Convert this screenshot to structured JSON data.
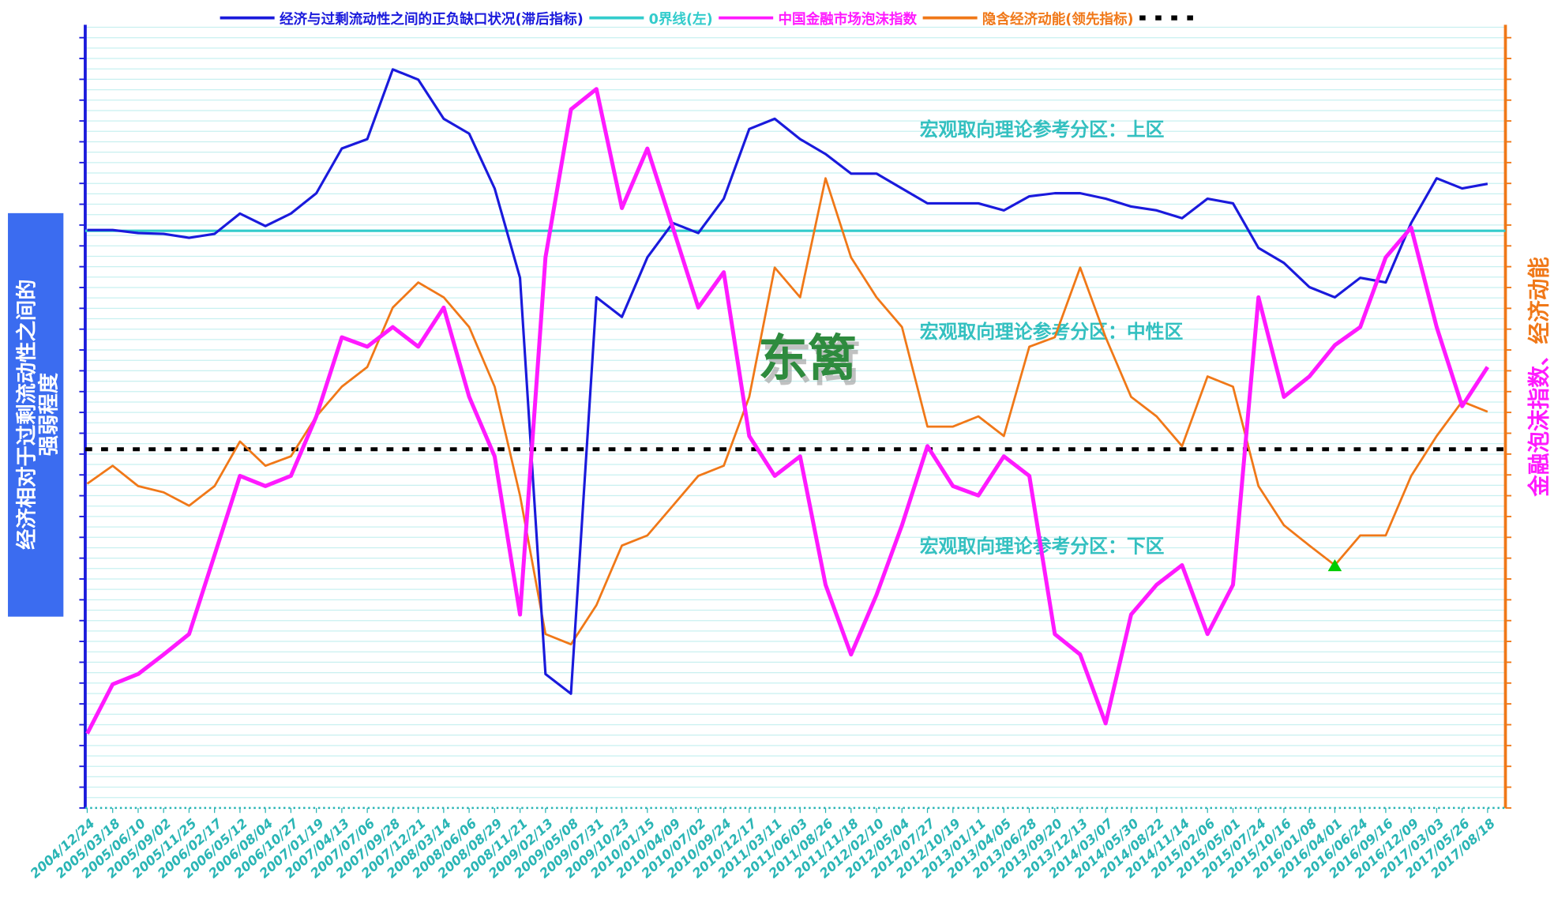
{
  "chart_data": {
    "type": "line",
    "watermark": "东篱",
    "ylabel": [
      "经济相对于过剩流动性之间的",
      "强弱程度"
    ],
    "y2label": [
      "金融泡沫指数、",
      "经济动能"
    ],
    "ylim": [
      0,
      100
    ],
    "y2lim": [
      0,
      100
    ],
    "annotations": [
      "宏观取向理论参考分区：上区",
      "宏观取向理论参考分区：中性区",
      "宏观取向理论参考分区：下区"
    ],
    "categories": [
      "2004/12/24",
      "2005/03/18",
      "2005/06/10",
      "2005/09/02",
      "2005/11/25",
      "2006/02/17",
      "2006/05/12",
      "2006/08/04",
      "2006/10/27",
      "2007/01/19",
      "2007/04/13",
      "2007/07/06",
      "2007/09/28",
      "2007/12/21",
      "2008/03/14",
      "2008/06/06",
      "2008/08/29",
      "2008/11/21",
      "2009/02/13",
      "2009/05/08",
      "2009/07/31",
      "2009/10/23",
      "2010/01/15",
      "2010/04/09",
      "2010/07/02",
      "2010/09/24",
      "2010/12/17",
      "2011/03/11",
      "2011/06/03",
      "2011/08/26",
      "2011/11/18",
      "2012/02/10",
      "2012/05/04",
      "2012/07/27",
      "2012/10/19",
      "2013/01/11",
      "2013/04/05",
      "2013/06/28",
      "2013/09/20",
      "2013/12/13",
      "2014/03/07",
      "2014/05/30",
      "2014/08/22",
      "2014/11/14",
      "2015/02/06",
      "2015/05/01",
      "2015/07/24",
      "2015/10/16",
      "2016/01/08",
      "2016/04/01",
      "2016/06/24",
      "2016/09/16",
      "2016/12/09",
      "2017/03/03",
      "2017/05/26",
      "2017/08/18"
    ],
    "series": [
      {
        "name": "经济与过剩流动性之间的正负缺口状况(滞后指标)",
        "color": "#1a1adc",
        "width": 2.5,
        "values": [
          73.8,
          73.8,
          73.4,
          73.3,
          72.8,
          73.3,
          75.9,
          74.3,
          75.9,
          78.5,
          84.2,
          85.4,
          94.3,
          93.0,
          88.0,
          86.1,
          79.1,
          67.7,
          17.1,
          14.6,
          65.2,
          62.7,
          70.3,
          74.7,
          73.4,
          77.8,
          86.7,
          88.0,
          85.4,
          83.5,
          81.0,
          81.0,
          79.1,
          77.2,
          77.2,
          77.2,
          76.3,
          78.1,
          78.5,
          78.5,
          77.8,
          76.8,
          76.3,
          75.3,
          77.8,
          77.2,
          71.5,
          69.6,
          66.5,
          65.2,
          67.7,
          67.1,
          74.7,
          80.4,
          79.1,
          79.7
        ]
      },
      {
        "name": "中国金融市场泡沫指数",
        "color": "#ff1aff",
        "width": 4,
        "axis": "y2",
        "values": [
          9.5,
          15.8,
          17.1,
          19.6,
          22.2,
          32.3,
          42.4,
          41.1,
          42.4,
          50.0,
          60.1,
          58.9,
          61.4,
          58.9,
          63.9,
          52.5,
          44.9,
          24.7,
          70.3,
          89.2,
          91.8,
          76.6,
          84.2,
          74.1,
          63.9,
          68.4,
          47.5,
          42.4,
          44.9,
          28.5,
          19.6,
          27.2,
          36.1,
          46.2,
          41.1,
          39.9,
          44.9,
          42.4,
          22.2,
          19.6,
          10.8,
          24.7,
          28.5,
          31.0,
          22.2,
          28.5,
          65.2,
          52.5,
          55.1,
          59.1,
          61.4,
          70.3,
          74.1,
          61.4,
          51.3,
          56.3
        ]
      },
      {
        "name": "隐含经济动能(领先指标)",
        "color": "#f07818",
        "width": 2.2,
        "axis": "y2",
        "values": [
          41.4,
          43.7,
          41.1,
          40.3,
          38.6,
          41.1,
          46.8,
          43.7,
          44.9,
          50.0,
          53.8,
          56.3,
          63.9,
          67.1,
          65.2,
          61.4,
          53.8,
          39.9,
          22.2,
          20.9,
          25.9,
          33.5,
          34.8,
          38.6,
          42.4,
          43.7,
          52.5,
          69.0,
          65.2,
          80.4,
          70.3,
          65.2,
          61.4,
          48.7,
          48.7,
          50.0,
          47.5,
          58.9,
          60.1,
          69.0,
          60.1,
          52.5,
          50.0,
          46.2,
          55.1,
          53.8,
          41.1,
          36.1,
          33.5,
          31.0,
          34.8,
          34.8,
          42.4,
          47.5,
          51.9,
          50.6
        ]
      }
    ],
    "hlines": [
      {
        "name": "0界线(左)",
        "value": 73.7,
        "color": "#33cccc"
      },
      {
        "value": 45.8,
        "color": "#000000"
      }
    ],
    "highlight": {
      "series": 2,
      "index": 49,
      "color": "#00cc00"
    }
  }
}
